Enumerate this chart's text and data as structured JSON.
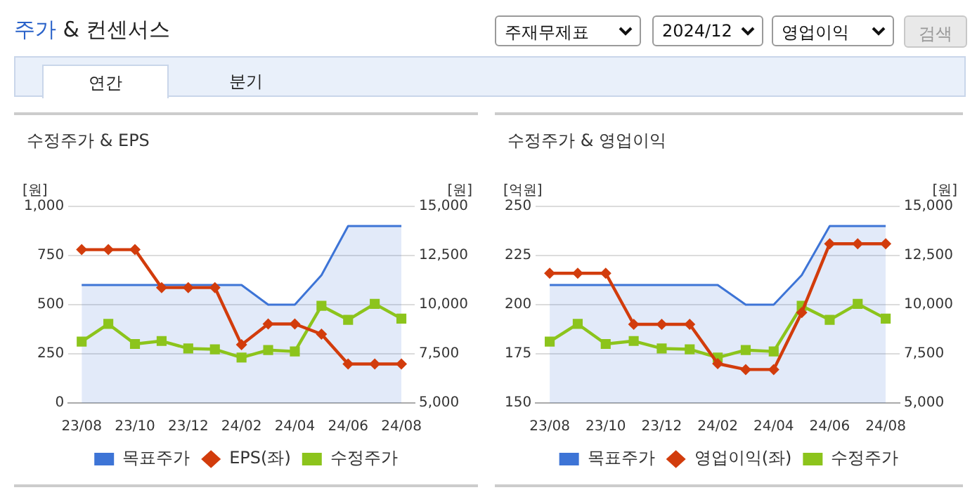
{
  "chart_data": [
    {
      "type": "other",
      "title": "주가 & 컨센서스",
      "annotations": [
        "주재무제표",
        "2024/12",
        "영업이익",
        "검색",
        "연간",
        "분기"
      ]
    },
    {
      "type": "line",
      "title": "수정주가 & EPS",
      "ylabel": "[원]",
      "y2label": "[원]",
      "categories": [
        "23/08",
        null,
        "23/10",
        null,
        "23/12",
        null,
        "24/02",
        null,
        "24/04",
        null,
        "24/06",
        null,
        "24/08"
      ],
      "series": [
        {
          "name": "목표주가",
          "type": "area",
          "axis": "y2",
          "color": "#3d74d6",
          "marker": "none",
          "values": [
            11000,
            11000,
            11000,
            11000,
            11000,
            11000,
            11000,
            10000,
            10000,
            11500,
            14000,
            14000,
            14000
          ]
        },
        {
          "name": "EPS(좌)",
          "type": "line",
          "color": "#d23c0c",
          "marker": "diamond",
          "values": [
            780,
            780,
            780,
            587,
            587,
            587,
            296,
            402,
            402,
            350,
            198,
            198,
            198
          ]
        },
        {
          "name": "수정주가",
          "type": "line",
          "axis": "y2",
          "color": "#8cc41c",
          "marker": "square",
          "values": [
            8120,
            9020,
            8000,
            8150,
            7770,
            7730,
            7310,
            7690,
            7620,
            9940,
            9230,
            10040,
            9290
          ]
        }
      ],
      "ylim": [
        0,
        1000
      ],
      "yticks": [
        0,
        250,
        500,
        750,
        {
          "value": 1000,
          "label": "1,000"
        }
      ],
      "y2lim": [
        5000,
        15000
      ],
      "y2ticks": [
        {
          "value": 5000,
          "label": "5,000"
        },
        {
          "value": 7500,
          "label": "7,500"
        },
        {
          "value": 10000,
          "label": "10,000"
        },
        {
          "value": 12500,
          "label": "12,500"
        },
        {
          "value": 15000,
          "label": "15,000"
        }
      ],
      "grid": "y",
      "legend": "bottom"
    },
    {
      "type": "line",
      "title": "수정주가 & 영업이익",
      "ylabel": "[억원]",
      "y2label": "[원]",
      "categories": [
        "23/08",
        null,
        "23/10",
        null,
        "23/12",
        null,
        "24/02",
        null,
        "24/04",
        null,
        "24/06",
        null,
        "24/08"
      ],
      "series": [
        {
          "name": "목표주가",
          "type": "area",
          "axis": "y2",
          "color": "#3d74d6",
          "marker": "none",
          "values": [
            11000,
            11000,
            11000,
            11000,
            11000,
            11000,
            11000,
            10000,
            10000,
            11500,
            14000,
            14000,
            14000
          ]
        },
        {
          "name": "영업이익(좌)",
          "type": "line",
          "color": "#d23c0c",
          "marker": "diamond",
          "values": [
            216,
            216,
            216,
            190,
            190,
            190,
            170,
            167,
            167,
            196,
            231,
            231,
            231
          ]
        },
        {
          "name": "수정주가",
          "type": "line",
          "axis": "y2",
          "color": "#8cc41c",
          "marker": "square",
          "values": [
            8120,
            9020,
            8000,
            8150,
            7770,
            7730,
            7310,
            7690,
            7620,
            9940,
            9230,
            10040,
            9290
          ]
        }
      ],
      "ylim": [
        150,
        250
      ],
      "yticks": [
        150,
        175,
        200,
        225,
        250
      ],
      "y2lim": [
        5000,
        15000
      ],
      "y2ticks": [
        {
          "value": 5000,
          "label": "5,000"
        },
        {
          "value": 7500,
          "label": "7,500"
        },
        {
          "value": 10000,
          "label": "10,000"
        },
        {
          "value": 12500,
          "label": "12,500"
        },
        {
          "value": 15000,
          "label": "15,000"
        }
      ],
      "grid": "y",
      "legend": "bottom"
    }
  ]
}
